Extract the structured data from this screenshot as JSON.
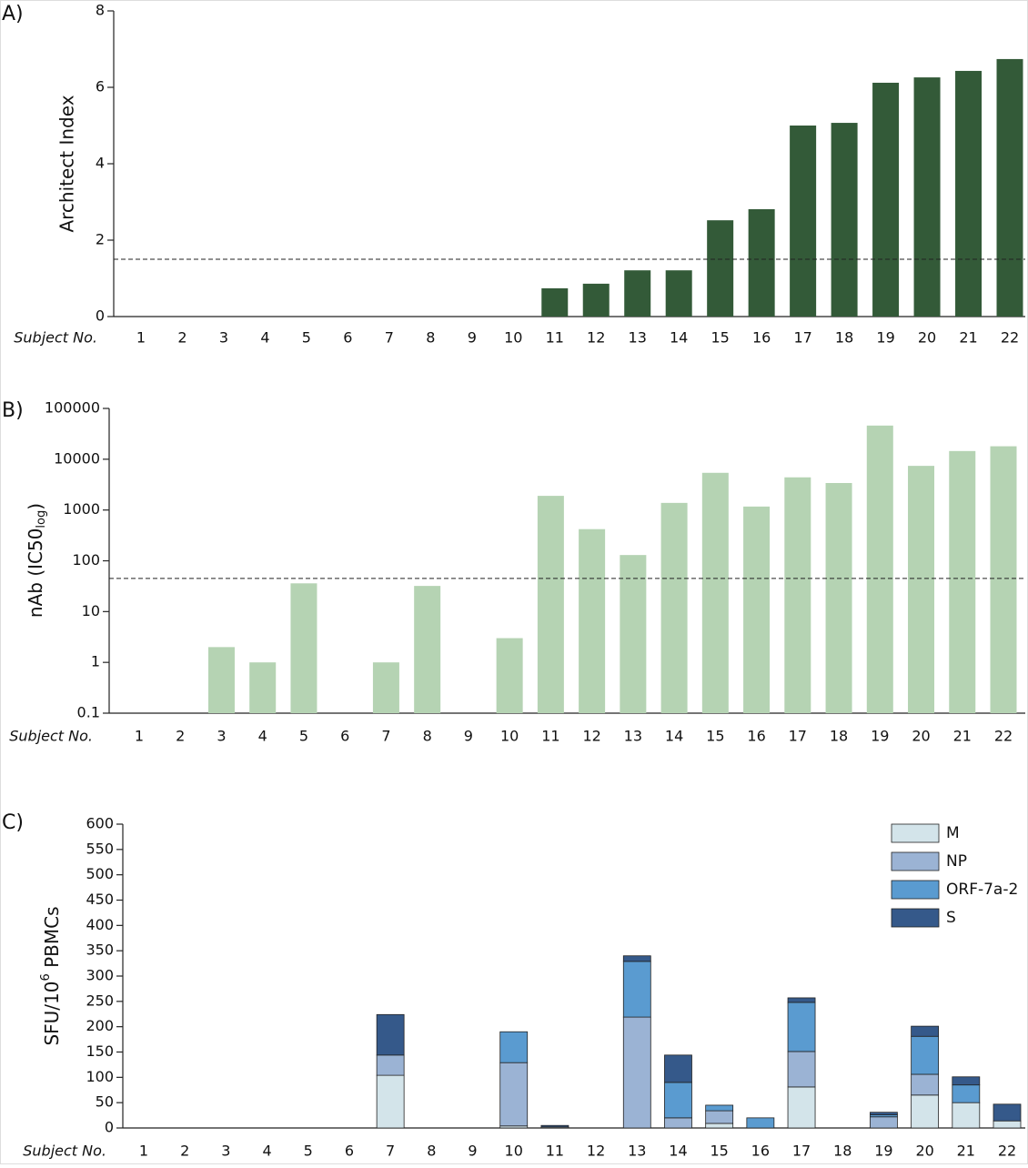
{
  "chart_data": [
    {
      "type": "bar",
      "panel": "A)",
      "ylabel": "Architect Index",
      "xlabel": "Subject No.",
      "categories": [
        "1",
        "2",
        "3",
        "4",
        "5",
        "6",
        "7",
        "8",
        "9",
        "10",
        "11",
        "12",
        "13",
        "14",
        "15",
        "16",
        "17",
        "18",
        "19",
        "20",
        "21",
        "22"
      ],
      "values": [
        0,
        0,
        0,
        0,
        0,
        0,
        0,
        0,
        0,
        0,
        0.74,
        0.86,
        1.21,
        1.21,
        2.52,
        2.81,
        5.0,
        5.07,
        6.12,
        6.26,
        6.43,
        6.74
      ],
      "color": "#335a38",
      "ylim": [
        0,
        8
      ],
      "yticks": [
        0,
        2,
        4,
        6,
        8
      ],
      "threshold": 1.5
    },
    {
      "type": "bar",
      "panel": "B)",
      "ylabel": {
        "text": "nAb (IC50",
        "subscript": "log",
        "suffix": ")"
      },
      "xlabel": "Subject No.",
      "categories": [
        "1",
        "2",
        "3",
        "4",
        "5",
        "6",
        "7",
        "8",
        "9",
        "10",
        "11",
        "12",
        "13",
        "14",
        "15",
        "16",
        "17",
        "18",
        "19",
        "20",
        "21",
        "22"
      ],
      "values": [
        null,
        null,
        2,
        1,
        36,
        null,
        1,
        32,
        null,
        3,
        1900,
        420,
        130,
        1380,
        5400,
        1170,
        4400,
        3400,
        46000,
        7400,
        14500,
        18000
      ],
      "color": "#b5d3b3",
      "log_scale": true,
      "ylim": [
        0.1,
        100000
      ],
      "yticks": [
        0.1,
        1,
        10,
        100,
        1000,
        10000,
        100000
      ],
      "threshold": 45
    },
    {
      "type": "stacked_bar",
      "panel": "C)",
      "ylabel": {
        "text": "SFU/10",
        "superscript": "6",
        "suffix": " PBMCs"
      },
      "xlabel": "Subject No.",
      "categories": [
        "1",
        "2",
        "3",
        "4",
        "5",
        "6",
        "7",
        "8",
        "9",
        "10",
        "11",
        "12",
        "13",
        "14",
        "15",
        "16",
        "17",
        "18",
        "19",
        "20",
        "21",
        "22"
      ],
      "series": [
        {
          "name": "M",
          "color": "#d3e4ea",
          "values": [
            0,
            0,
            0,
            0,
            0,
            0,
            104,
            0,
            0,
            4,
            2,
            0,
            0,
            0,
            9,
            0,
            81,
            0,
            0,
            65,
            50,
            14
          ]
        },
        {
          "name": "NP",
          "color": "#9bb3d4",
          "values": [
            0,
            0,
            0,
            0,
            0,
            0,
            40,
            0,
            0,
            125,
            0,
            0,
            219,
            20,
            25,
            0,
            70,
            0,
            22,
            41,
            0,
            0
          ]
        },
        {
          "name": "ORF-7a-2",
          "color": "#5a9bd0",
          "values": [
            0,
            0,
            0,
            0,
            0,
            0,
            0,
            0,
            0,
            61,
            0,
            0,
            110,
            70,
            11,
            20,
            97,
            0,
            4,
            75,
            35,
            0
          ]
        },
        {
          "name": "S",
          "color": "#35598a",
          "values": [
            0,
            0,
            0,
            0,
            0,
            0,
            80,
            0,
            0,
            0,
            3,
            0,
            11,
            54,
            0,
            0,
            9,
            0,
            5,
            20,
            16,
            33
          ]
        }
      ],
      "ylim": [
        0,
        600
      ],
      "yticks": [
        0,
        50,
        100,
        150,
        200,
        250,
        300,
        350,
        400,
        450,
        500,
        550,
        600
      ],
      "legend": "top-right"
    }
  ]
}
